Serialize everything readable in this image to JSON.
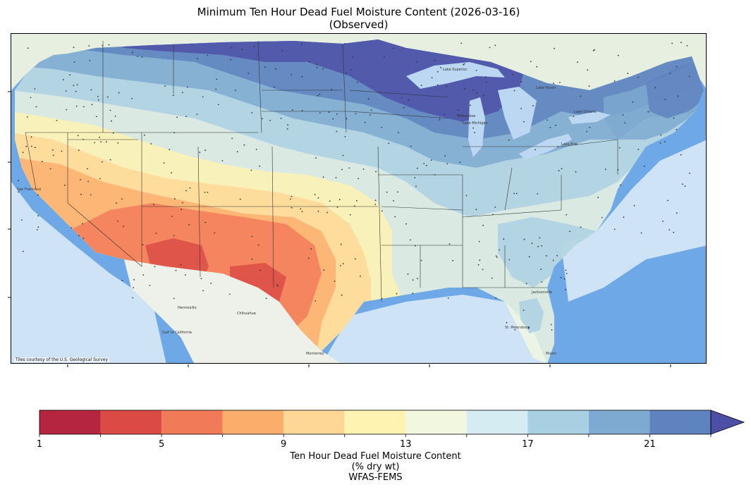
{
  "title": {
    "line1": "Minimum Ten Hour Dead Fuel Moisture Content (2026-03-16)",
    "line2": "(Observed)"
  },
  "map": {
    "attribution": "Tiles courtesy of the U.S. Geological Survey",
    "place_labels": [
      "San Francisco",
      "Chihuahua",
      "Monterrey",
      "Hermosillo",
      "Gulf of California",
      "Lake Superior",
      "Lake Michigan",
      "Lake Erie",
      "Lake Huron",
      "Lake Ontario",
      "Milwaukee",
      "Jacksonville",
      "St. Petersburg",
      "Miami"
    ],
    "colors": {
      "ocean": "#6fa8e6",
      "ocean_near": "#cfe3f7",
      "mexico_land": "#eef0ea",
      "canada_land": "#e6efe0",
      "lakes": "#bcd7f2",
      "state_lines": "#333333"
    }
  },
  "colorbar": {
    "tick_labels": [
      "1",
      "5",
      "9",
      "13",
      "17",
      "21"
    ],
    "bins": [
      {
        "from": 1,
        "to": 3,
        "color": "#b5253f"
      },
      {
        "from": 3,
        "to": 5,
        "color": "#dc4a45"
      },
      {
        "from": 5,
        "to": 7,
        "color": "#f17a59"
      },
      {
        "from": 7,
        "to": 9,
        "color": "#fbad6c"
      },
      {
        "from": 9,
        "to": 11,
        "color": "#fed796"
      },
      {
        "from": 11,
        "to": 13,
        "color": "#fef3b0"
      },
      {
        "from": 13,
        "to": 15,
        "color": "#f2f8e0"
      },
      {
        "from": 15,
        "to": 17,
        "color": "#d4ecf2"
      },
      {
        "from": 17,
        "to": 19,
        "color": "#a9cfe3"
      },
      {
        "from": 19,
        "to": 21,
        "color": "#7ea9d0"
      },
      {
        "from": 21,
        "to": 23,
        "color": "#5f83bf"
      },
      {
        "from": 23,
        "to": null,
        "color": "#4d4fa6"
      }
    ],
    "extend": "max",
    "label_line1": "Ten Hour Dead Fuel Moisture Content",
    "label_line2": "(% dry wt)",
    "label_line3": "WFAS-FEMS"
  }
}
